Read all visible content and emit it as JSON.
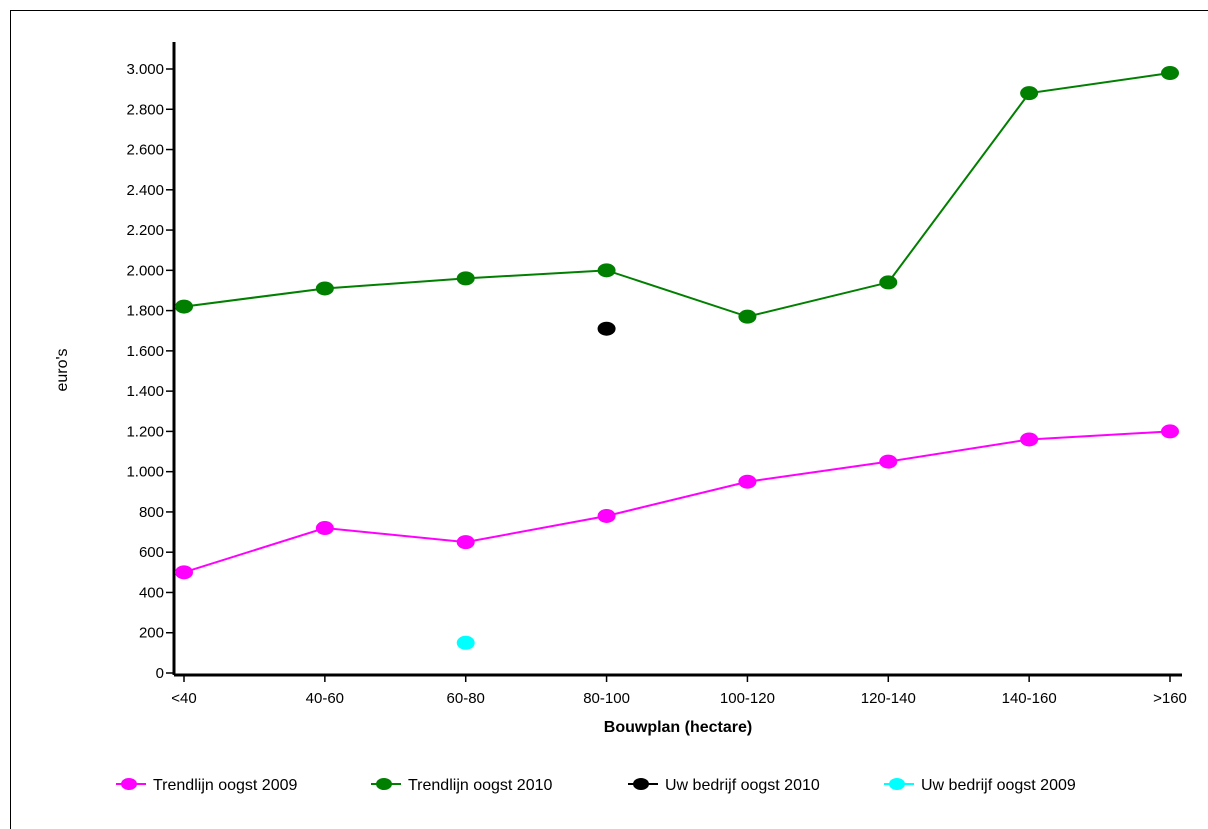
{
  "chart_data": {
    "type": "line",
    "categories": [
      "<40",
      "40-60",
      "60-80",
      "80-100",
      "100-120",
      "120-140",
      "140-160",
      ">160"
    ],
    "xlabel": "Bouwplan (hectare)",
    "ylabel": "euro's",
    "ylim": [
      0,
      3000
    ],
    "yticks": [
      0,
      200,
      400,
      600,
      800,
      1000,
      1200,
      1400,
      1600,
      1800,
      2000,
      2200,
      2400,
      2600,
      2800,
      3000
    ],
    "ytick_labels": [
      "0",
      "200",
      "400",
      "600",
      "800",
      "1.000",
      "1.200",
      "1.400",
      "1.600",
      "1.800",
      "2.000",
      "2.200",
      "2.400",
      "2.600",
      "2.800",
      "3.000"
    ],
    "grid": false,
    "legend_position": "bottom",
    "series": [
      {
        "name": "Trendlijn oogst 2009",
        "color": "#ff00ff",
        "line": true,
        "values": [
          500,
          720,
          650,
          780,
          950,
          1050,
          1160,
          1200
        ]
      },
      {
        "name": "Trendlijn oogst 2010",
        "color": "#007f00",
        "line": true,
        "values": [
          1820,
          1910,
          1960,
          2000,
          1770,
          1940,
          2880,
          2980
        ]
      },
      {
        "name": "Uw bedrijf oogst 2010",
        "color": "#000000",
        "line": false,
        "values": [
          null,
          null,
          null,
          1710,
          null,
          null,
          null,
          null
        ]
      },
      {
        "name": "Uw bedrijf oogst 2009",
        "color": "#00ffff",
        "line": false,
        "values": [
          null,
          null,
          150,
          null,
          null,
          null,
          null,
          null
        ]
      }
    ]
  }
}
